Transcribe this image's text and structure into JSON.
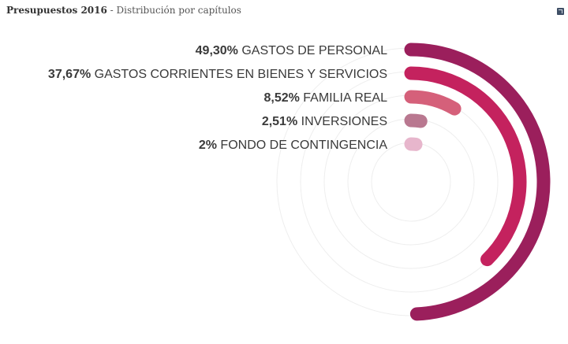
{
  "header": {
    "title": "Presupuestos 2016",
    "separator": " - ",
    "subtitle": "Distribución por capítulos"
  },
  "chart_data": {
    "type": "radial-bar",
    "title": "Presupuestos 2016",
    "subtitle": "Distribución por capítulos",
    "series": [
      {
        "percent_label": "49,30%",
        "name": "GASTOS DE PERSONAL",
        "value": 49.3,
        "color": "#9b1f5c"
      },
      {
        "percent_label": "37,67%",
        "name": "GASTOS CORRIENTES EN BIENES Y SERVICIOS",
        "value": 37.67,
        "color": "#c4225e"
      },
      {
        "percent_label": "8,52%",
        "name": "FAMILIA REAL",
        "value": 8.52,
        "color": "#d5607a"
      },
      {
        "percent_label": "2,51%",
        "name": "INVERSIONES",
        "value": 2.51,
        "color": "#b97890"
      },
      {
        "percent_label": "2%",
        "name": "FONDO DE CONTINGENCIA",
        "value": 2.0,
        "color": "#e7b6cc"
      }
    ],
    "scale_max": 100,
    "grid_circles": true
  }
}
